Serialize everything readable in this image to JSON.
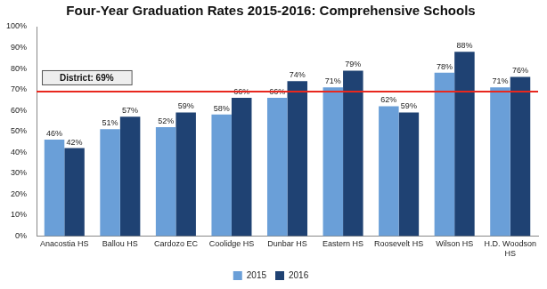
{
  "chart_data": {
    "type": "bar",
    "title": "Four-Year Graduation Rates 2015-2016: Comprehensive Schools",
    "categories": [
      "Anacostia HS",
      "Ballou HS",
      "Cardozo EC",
      "Coolidge HS",
      "Dunbar HS",
      "Eastern HS",
      "Roosevelt HS",
      "Wilson HS",
      "H.D. Woodson HS"
    ],
    "series": [
      {
        "name": "2015",
        "color": "#6a9fd8",
        "values": [
          46,
          51,
          52,
          58,
          66,
          71,
          62,
          78,
          71
        ],
        "value_labels": [
          "46%",
          "51%",
          "52%",
          "58%",
          "66%",
          "71%",
          "62%",
          "78%",
          "71%"
        ]
      },
      {
        "name": "2016",
        "color": "#1f4273",
        "values": [
          42,
          57,
          59,
          66,
          74,
          79,
          59,
          88,
          76
        ],
        "value_labels": [
          "42%",
          "57%",
          "59%",
          "66%",
          "74%",
          "79%",
          "59%",
          "88%",
          "76%"
        ]
      }
    ],
    "annotations": [
      {
        "text": "District: 69%",
        "value": 69,
        "color": "#e8281e"
      }
    ],
    "ylim": [
      0,
      100
    ],
    "yticks": [
      {
        "value": 0,
        "label": "0%"
      },
      {
        "value": 10,
        "label": "10%"
      },
      {
        "value": 20,
        "label": "20%"
      },
      {
        "value": 30,
        "label": "30%"
      },
      {
        "value": 40,
        "label": "40%"
      },
      {
        "value": 50,
        "label": "50%"
      },
      {
        "value": 60,
        "label": "60%"
      },
      {
        "value": 70,
        "label": "70%"
      },
      {
        "value": 80,
        "label": "80%"
      },
      {
        "value": 90,
        "label": "90%"
      },
      {
        "value": 100,
        "label": "100%"
      }
    ],
    "grid": false,
    "legend": "bottom",
    "data_labels": true
  }
}
